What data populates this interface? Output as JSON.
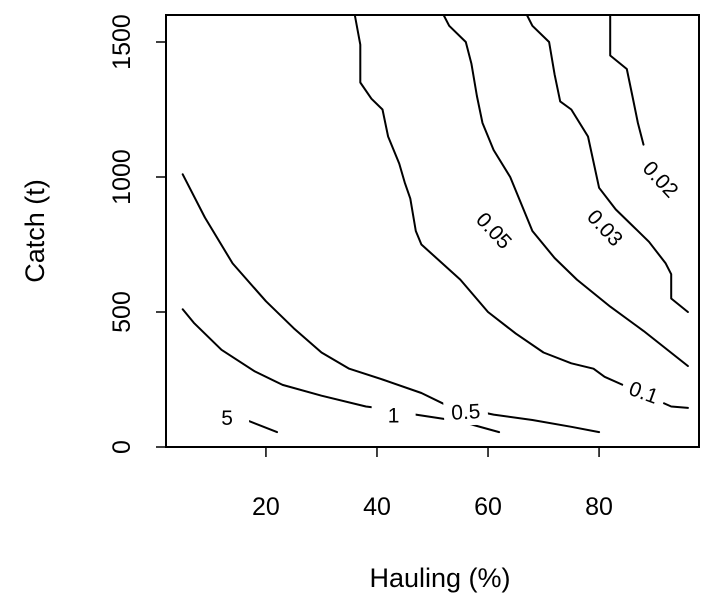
{
  "chart_data": {
    "type": "contour",
    "title": "",
    "xlabel": "Hauling (%)",
    "ylabel": "Catch (t)",
    "xlim": [
      2,
      98
    ],
    "ylim": [
      0,
      1600
    ],
    "xticks": [
      "20",
      "40",
      "60",
      "80"
    ],
    "xtick_values": [
      20,
      40,
      60,
      80
    ],
    "yticks": [
      "0",
      "500",
      "1000",
      "1500"
    ],
    "ytick_values": [
      0,
      500,
      1000,
      1500
    ],
    "grid": false,
    "series": [
      {
        "name": "5",
        "label": "5",
        "label_at": [
          13,
          105
        ],
        "label_angle": 0,
        "points": [
          [
            14,
            120
          ],
          [
            22,
            55
          ]
        ]
      },
      {
        "name": "1",
        "label": "1",
        "label_at": [
          43,
          114
        ],
        "label_angle": 0,
        "points": [
          [
            5,
            510
          ],
          [
            7,
            460
          ],
          [
            12,
            360
          ],
          [
            18,
            280
          ],
          [
            23,
            230
          ],
          [
            30,
            190
          ],
          [
            38,
            150
          ],
          [
            40,
            145
          ],
          [
            47,
            120
          ],
          [
            55,
            95
          ],
          [
            62,
            55
          ]
        ]
      },
      {
        "name": "0.5",
        "label": "0.5",
        "label_at": [
          56,
          128
        ],
        "label_angle": -3,
        "points": [
          [
            5,
            1010
          ],
          [
            9,
            850
          ],
          [
            14,
            680
          ],
          [
            20,
            540
          ],
          [
            25,
            440
          ],
          [
            30,
            350
          ],
          [
            35,
            290
          ],
          [
            41,
            250
          ],
          [
            48,
            200
          ],
          [
            52,
            160
          ],
          [
            54,
            150
          ],
          [
            61,
            120
          ],
          [
            68,
            100
          ],
          [
            75,
            75
          ],
          [
            80,
            55
          ]
        ]
      },
      {
        "name": "0.1",
        "label": "0.1",
        "label_at": [
          88,
          200
        ],
        "label_angle": 20,
        "points": [
          [
            36,
            1600
          ],
          [
            37,
            1490
          ],
          [
            37,
            1350
          ],
          [
            39,
            1290
          ],
          [
            41,
            1250
          ],
          [
            42,
            1150
          ],
          [
            44,
            1050
          ],
          [
            45,
            980
          ],
          [
            46,
            920
          ],
          [
            47,
            800
          ],
          [
            48,
            750
          ],
          [
            55,
            620
          ],
          [
            60,
            500
          ],
          [
            65,
            420
          ],
          [
            70,
            350
          ],
          [
            75,
            310
          ],
          [
            79,
            290
          ],
          [
            81,
            260
          ],
          [
            93,
            150
          ],
          [
            96,
            145
          ]
        ]
      },
      {
        "name": "0.05",
        "label": "0.05",
        "label_at": [
          61,
          800
        ],
        "label_angle": 47,
        "points": [
          [
            52,
            1600
          ],
          [
            53,
            1560
          ],
          [
            56,
            1500
          ],
          [
            57,
            1420
          ],
          [
            58,
            1300
          ],
          [
            59,
            1200
          ],
          [
            61,
            1100
          ],
          [
            64,
            1000
          ],
          [
            66,
            900
          ],
          [
            68,
            800
          ],
          [
            72,
            700
          ],
          [
            76,
            620
          ],
          [
            82,
            520
          ],
          [
            88,
            430
          ],
          [
            96,
            300
          ]
        ]
      },
      {
        "name": "0.03",
        "label": "0.03",
        "label_at": [
          81,
          810
        ],
        "label_angle": 47,
        "points": [
          [
            67,
            1600
          ],
          [
            68,
            1560
          ],
          [
            71,
            1500
          ],
          [
            72,
            1380
          ],
          [
            73,
            1280
          ],
          [
            75,
            1250
          ],
          [
            78,
            1150
          ],
          [
            80,
            960
          ],
          [
            83,
            880
          ],
          [
            86,
            820
          ],
          [
            89,
            760
          ],
          [
            92,
            680
          ],
          [
            93,
            640
          ],
          [
            93,
            550
          ],
          [
            96,
            500
          ]
        ]
      },
      {
        "name": "0.02",
        "label": "0.02",
        "label_at": [
          91,
          990
        ],
        "label_angle": 47,
        "points": [
          [
            82,
            1600
          ],
          [
            82,
            1450
          ],
          [
            85,
            1400
          ],
          [
            86,
            1300
          ],
          [
            87,
            1200
          ],
          [
            88,
            1120
          ]
        ]
      }
    ]
  }
}
